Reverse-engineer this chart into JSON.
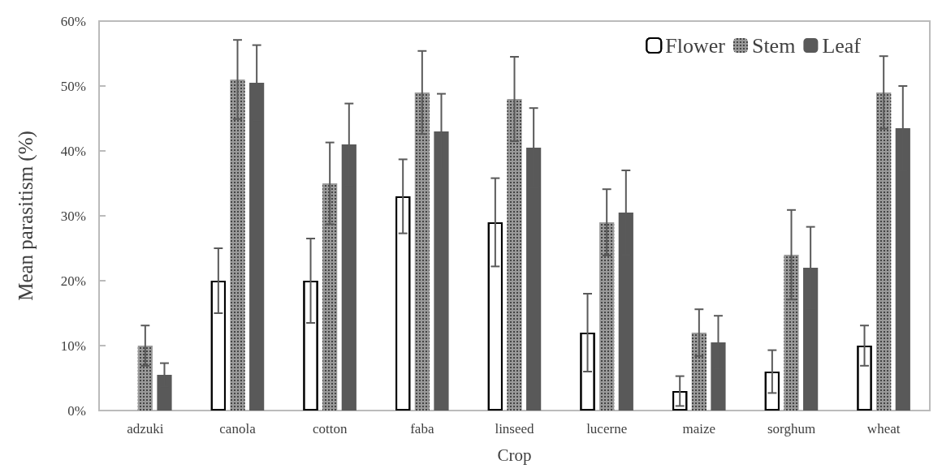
{
  "chart_data": {
    "type": "bar",
    "xlabel": "Crop",
    "ylabel": "Mean parasitism (%)",
    "categories": [
      "adzuki",
      "canola",
      "cotton",
      "faba",
      "linseed",
      "lucerne",
      "maize",
      "sorghum",
      "wheat"
    ],
    "series": [
      {
        "name": "Flower",
        "color": "#ffffff",
        "values": [
          null,
          20,
          20,
          33,
          29,
          12,
          3,
          6,
          10
        ],
        "errors": [
          null,
          5,
          6.5,
          5.7,
          6.8,
          6,
          2.3,
          3.3,
          3.1
        ]
      },
      {
        "name": "Stem",
        "color": "#9a9a9a",
        "values": [
          10,
          51,
          35,
          49,
          48,
          29,
          12,
          24,
          49
        ],
        "errors": [
          3.1,
          6.1,
          6.3,
          6.4,
          6.5,
          5.1,
          3.6,
          6.9,
          5.6
        ]
      },
      {
        "name": "Leaf",
        "color": "#595959",
        "values": [
          5.5,
          50.5,
          41,
          43,
          40.5,
          30.5,
          10.5,
          22,
          43.5
        ],
        "errors": [
          1.8,
          5.8,
          6.3,
          5.8,
          6.1,
          6.5,
          4.1,
          6.3,
          6.5
        ]
      }
    ],
    "ylim": [
      0,
      60
    ],
    "yticks": [
      {
        "value": 0,
        "label": "0%"
      },
      {
        "value": 10,
        "label": "10%"
      },
      {
        "value": 20,
        "label": "20%"
      },
      {
        "value": 30,
        "label": "30%"
      },
      {
        "value": 40,
        "label": "40%"
      },
      {
        "value": 50,
        "label": "50%"
      },
      {
        "value": 60,
        "label": "60%"
      }
    ],
    "grid": false,
    "legend": "top right"
  }
}
